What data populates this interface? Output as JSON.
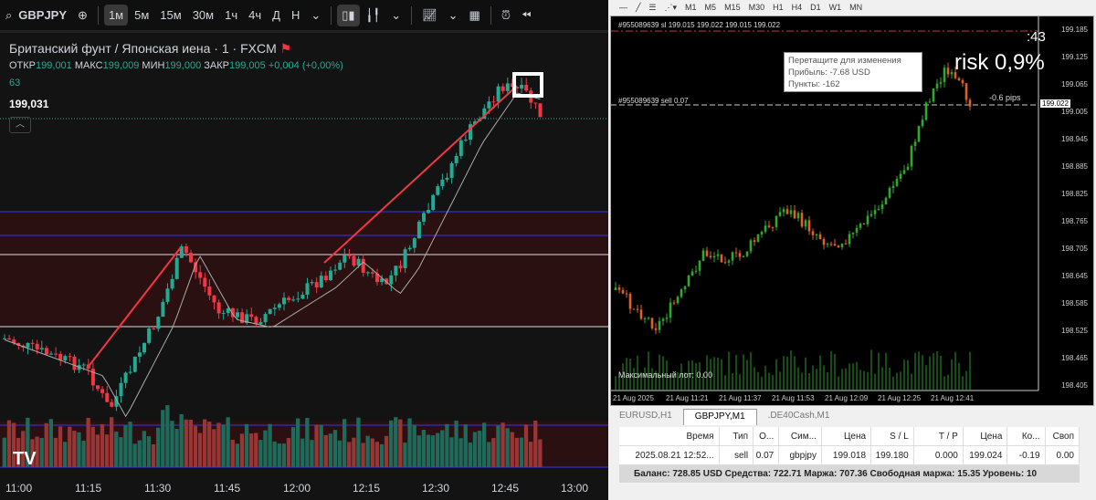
{
  "left": {
    "toolbar": {
      "symbol": "GBPJPY",
      "timeframes": [
        "1м",
        "5м",
        "15м",
        "30м",
        "1ч",
        "4ч",
        "Д",
        "Н"
      ],
      "active_timeframe": "1м"
    },
    "legend": {
      "title": "Британский фунт / Японская иена · 1 · FXCM",
      "open_label": "ОТКР",
      "open": "199,001",
      "high_label": "МАКС",
      "high": "199,009",
      "low_label": "МИН",
      "low": "199,000",
      "close_label": "ЗАКР",
      "close": "199,005",
      "change": "+0,004 (+0,00%)",
      "volume": "63",
      "price": "199,031"
    },
    "time_axis": [
      "11:00",
      "11:15",
      "11:30",
      "11:45",
      "12:00",
      "12:15",
      "12:30",
      "12:45",
      "13:00"
    ],
    "colors": {
      "up": "#22ab94",
      "down": "#f23645",
      "trendline": "#f23645",
      "zone": "#2a1010",
      "level": "#2a2aa8"
    }
  },
  "right": {
    "toolbar": {
      "timeframes": [
        "M1",
        "M5",
        "M15",
        "M30",
        "H1",
        "H4",
        "D1",
        "W1",
        "MN"
      ]
    },
    "chart": {
      "header": "#955089639 sl 199.015 199.022 199.015 199.022",
      "order_label": "#955089639 sell 0.07",
      "pips": "-0.6 pips",
      "seconds": ":43",
      "risk": "risk 0,9%",
      "max_lot": "Максимальный лот: 0.00",
      "current_price": "199.022",
      "price_axis": [
        "199.185",
        "199.125",
        "199.065",
        "199.005",
        "198.945",
        "198.885",
        "198.825",
        "198.765",
        "198.705",
        "198.645",
        "198.585",
        "198.525",
        "198.465",
        "198.405"
      ],
      "time_axis": [
        "21 Aug 2025",
        "21 Aug 11:21",
        "21 Aug 11:37",
        "21 Aug 11:53",
        "21 Aug 12:09",
        "21 Aug 12:25",
        "21 Aug 12:41"
      ],
      "tooltip": [
        "Перетащите для изменения",
        "Прибыль: -7.68 USD",
        "Пункты: -162"
      ]
    },
    "tabs": [
      "EURUSD,H1",
      "GBPJPY,M1",
      ".DE40Cash,M1"
    ],
    "active_tab": "GBPJPY,M1",
    "table": {
      "headers": [
        "Время",
        "Тип",
        "О...",
        "Сим...",
        "Цена",
        "S / L",
        "T / P",
        "Цена",
        "Ко...",
        "Своп"
      ],
      "rows": [
        [
          "2025.08.21 12:52...",
          "sell",
          "0.07",
          "gbpjpy",
          "199.018",
          "199.180",
          "0.000",
          "199.024",
          "-0.19",
          "0.00"
        ]
      ],
      "balance": "Баланс: 728.85 USD  Средства: 722.71  Маржа: 707.36  Свободная маржа: 15.35  Уровень: 10"
    }
  }
}
